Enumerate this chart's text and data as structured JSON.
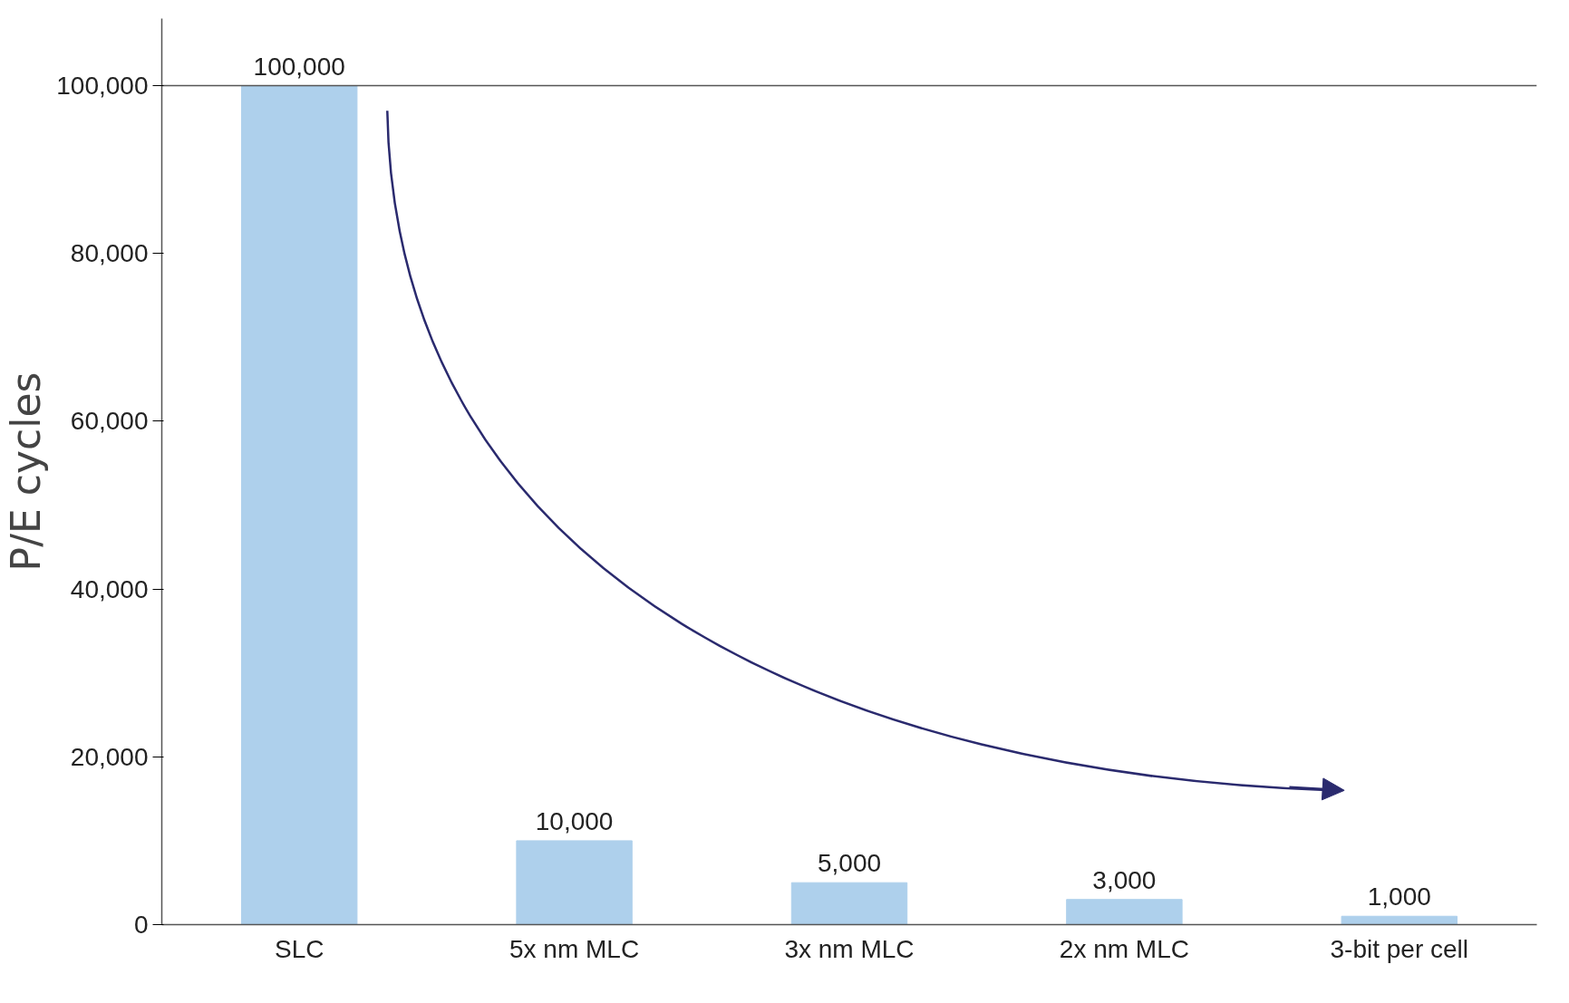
{
  "chart_data": {
    "type": "bar",
    "ylabel": "P/E cycles",
    "categories": [
      "SLC",
      "5x nm MLC",
      "3x nm MLC",
      "2x nm MLC",
      "3-bit per cell"
    ],
    "values": [
      100000,
      10000,
      5000,
      3000,
      1000
    ],
    "value_labels": [
      "100,000",
      "10,000",
      "5,000",
      "3,000",
      "1,000"
    ],
    "color": "#aed0ec",
    "ylim": [
      0,
      100000
    ],
    "yticks": [
      {
        "value": 0,
        "label": "0"
      },
      {
        "value": 20000,
        "label": "20,000"
      },
      {
        "value": 40000,
        "label": "40,000"
      },
      {
        "value": 60000,
        "label": "60,000"
      },
      {
        "value": 80000,
        "label": "80,000"
      },
      {
        "value": 100000,
        "label": "100,000"
      }
    ],
    "grid": false
  }
}
